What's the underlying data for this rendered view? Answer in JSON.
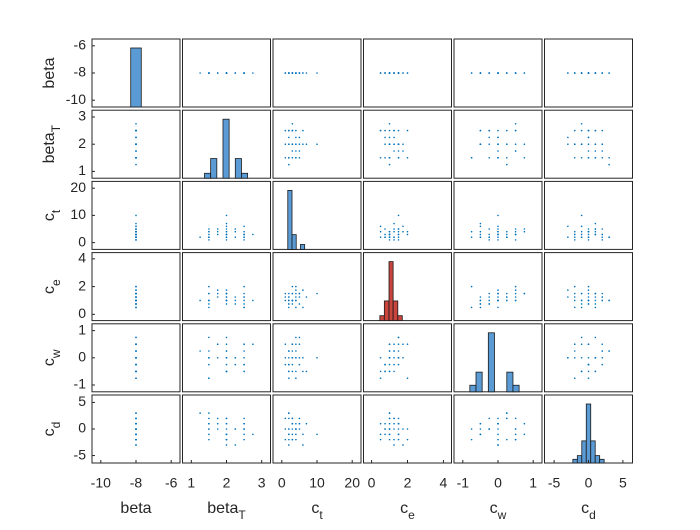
{
  "chart_data": {
    "type": "scatter-matrix",
    "point_color": "#0072bd",
    "variables": [
      {
        "label": "beta",
        "lim": [
          -10.5,
          -5.5
        ],
        "ticks": [
          -10,
          -8,
          -6
        ],
        "values": [
          -8,
          -8,
          -8,
          -8,
          -8,
          -8,
          -8,
          -8,
          -8,
          -8,
          -8,
          -8,
          -8,
          -8,
          -8,
          -8,
          -8,
          -8,
          -8,
          -8,
          -8,
          -8,
          -8,
          -8,
          -8,
          -8,
          -8,
          -8,
          -8,
          -8,
          -8,
          -8,
          -8,
          -8,
          -8,
          -8
        ],
        "histogram": {
          "bins": [
            -8.3,
            -7.7
          ],
          "counts": [
            36
          ],
          "color": "#5b9bd5"
        }
      },
      {
        "label": "beta",
        "label_sub": "T",
        "lim": [
          0.75,
          3.25
        ],
        "ticks": [
          1,
          2,
          3
        ],
        "values": [
          1.5,
          2,
          2.5,
          1.5,
          2,
          2.5,
          1.5,
          2,
          2.5,
          1.75,
          2.25,
          1.25,
          2,
          2,
          2.75,
          1.5,
          2.5,
          2,
          1.5,
          2,
          2.5,
          1.5,
          2,
          2.5,
          1.5,
          2,
          2.5,
          1.75,
          2.25,
          2,
          2,
          1.5,
          2.5,
          2,
          2.25,
          1.75
        ],
        "histogram": {
          "bins": [
            1.375,
            1.55,
            1.725,
            1.9,
            2.075,
            2.25,
            2.425,
            2.6
          ],
          "counts": [
            1,
            4,
            0,
            12,
            0,
            4,
            1
          ],
          "color": "#5b9bd5"
        }
      },
      {
        "label": "c",
        "label_sub": "t",
        "lim": [
          -2.5,
          22.5
        ],
        "ticks": [
          0,
          10,
          20
        ],
        "values": [
          2,
          2,
          2,
          3,
          3,
          3,
          4,
          4,
          4,
          5,
          5,
          2,
          6,
          7,
          3,
          2,
          2,
          3,
          4,
          5,
          6,
          1,
          1,
          1,
          2,
          10,
          3,
          4,
          2,
          3,
          4,
          5,
          3,
          2,
          4,
          3
        ],
        "histogram": {
          "bins": [
            1.7,
            2.9,
            4.1,
            5.3,
            6.5
          ],
          "counts": [
            12,
            3,
            0,
            1
          ],
          "color": "#5b9bd5"
        }
      },
      {
        "label": "c",
        "label_sub": "e",
        "lim": [
          -0.45,
          4.45
        ],
        "ticks": [
          0,
          2,
          4
        ],
        "values": [
          0.5,
          1,
          1.5,
          1,
          1.5,
          2,
          1.5,
          1,
          0.5,
          1.25,
          0.75,
          1,
          1.75,
          1.25,
          1,
          0.75,
          1.25,
          1,
          2,
          1.5,
          0.5,
          1,
          1.5,
          1.25,
          1,
          1.5,
          0.75,
          1.75,
          1.25,
          1,
          1.25,
          1.5,
          1,
          0.75,
          1,
          1.5
        ],
        "histogram": {
          "bins": [
            0.46,
            0.71,
            0.97,
            1.2,
            1.46,
            1.71
          ],
          "counts": [
            1,
            4,
            12,
            4,
            1
          ],
          "color": "#c8443c"
        }
      },
      {
        "label": "c",
        "label_sub": "w",
        "lim": [
          -1.25,
          1.25
        ],
        "ticks": [
          -1,
          0,
          1
        ],
        "values": [
          -0.75,
          -0.5,
          -0.25,
          0,
          0.25,
          0.5,
          0.75,
          -0.5,
          0,
          0.5,
          -0.25,
          0.25,
          0,
          -0.5,
          0.5,
          -0.25,
          0.25,
          0,
          -0.75,
          0.75,
          -0.5,
          0,
          0.5,
          -0.25,
          0.25,
          0,
          -0.5,
          0.5,
          0,
          -0.25,
          0.25,
          0,
          0.5,
          -0.5,
          0,
          0
        ],
        "histogram": {
          "bins": [
            -0.8,
            -0.625,
            -0.45,
            -0.275,
            -0.1,
            0.075,
            0.25,
            0.425,
            0.6
          ],
          "counts": [
            1,
            3,
            0,
            9,
            0,
            0,
            3,
            1
          ],
          "color": "#5b9bd5"
        }
      },
      {
        "label": "c",
        "label_sub": "d",
        "lim": [
          -6.4,
          6.4
        ],
        "ticks": [
          -5,
          0,
          5
        ],
        "values": [
          -2,
          -1,
          0,
          1,
          2,
          -2,
          -1,
          0,
          1,
          2,
          0,
          3,
          -3,
          1,
          -1,
          0,
          2,
          -2,
          0,
          1,
          -1,
          2,
          -2,
          0,
          3,
          -1,
          1,
          0,
          -3,
          2,
          -2,
          1,
          0,
          -1,
          0,
          1
        ],
        "histogram": {
          "bins": [
            -2.275,
            -1.625,
            -0.975,
            -0.325,
            0.325,
            0.975,
            1.625,
            2.275
          ],
          "counts": [
            1,
            2,
            6,
            16,
            6,
            2,
            1
          ],
          "color": "#5b9bd5"
        }
      }
    ]
  }
}
